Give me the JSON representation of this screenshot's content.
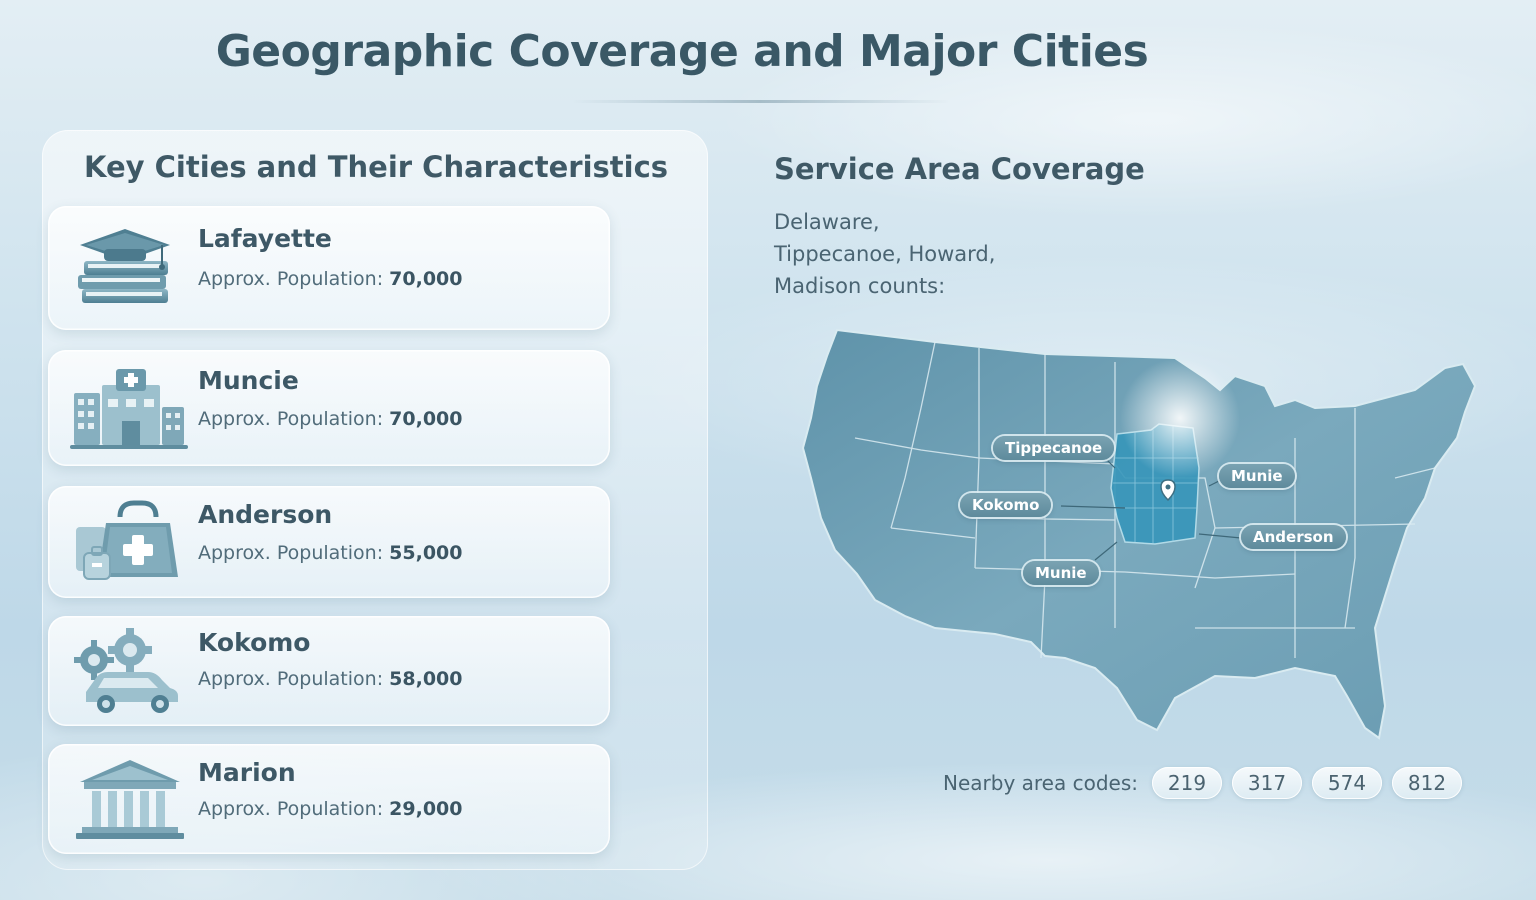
{
  "header": {
    "title": "Geographic Coverage and Major Cities"
  },
  "cities_panel": {
    "title": "Key Cities and Their Characteristics",
    "population_label": "Approx. Population:",
    "cities": [
      {
        "name": "Lafayette",
        "population": "70,000",
        "icon": "graduation-cap-books-icon"
      },
      {
        "name": "Muncie",
        "population": "70,000",
        "icon": "hospital-building-icon"
      },
      {
        "name": "Anderson",
        "population": "55,000",
        "icon": "medical-bag-icon"
      },
      {
        "name": "Kokomo",
        "population": "58,000",
        "icon": "gears-car-icon"
      },
      {
        "name": "Marion",
        "population": "29,000",
        "icon": "courthouse-icon"
      }
    ]
  },
  "coverage": {
    "title": "Service Area Coverage",
    "lines": [
      "Delaware,",
      "Tippecanoe, Howard,",
      "Madison counts:"
    ],
    "map_labels": [
      "Tippecanoe",
      "Kokomo",
      "Munie",
      "Anderson",
      "Munie"
    ],
    "area_codes_label": "Nearby area codes:",
    "area_codes": [
      "219",
      "317",
      "574",
      "812"
    ]
  },
  "colors": {
    "title": "#3a5866",
    "map_fill": "#6d9db2",
    "highlight": "#2f8fb3",
    "label_bg": "#6b97a8"
  }
}
